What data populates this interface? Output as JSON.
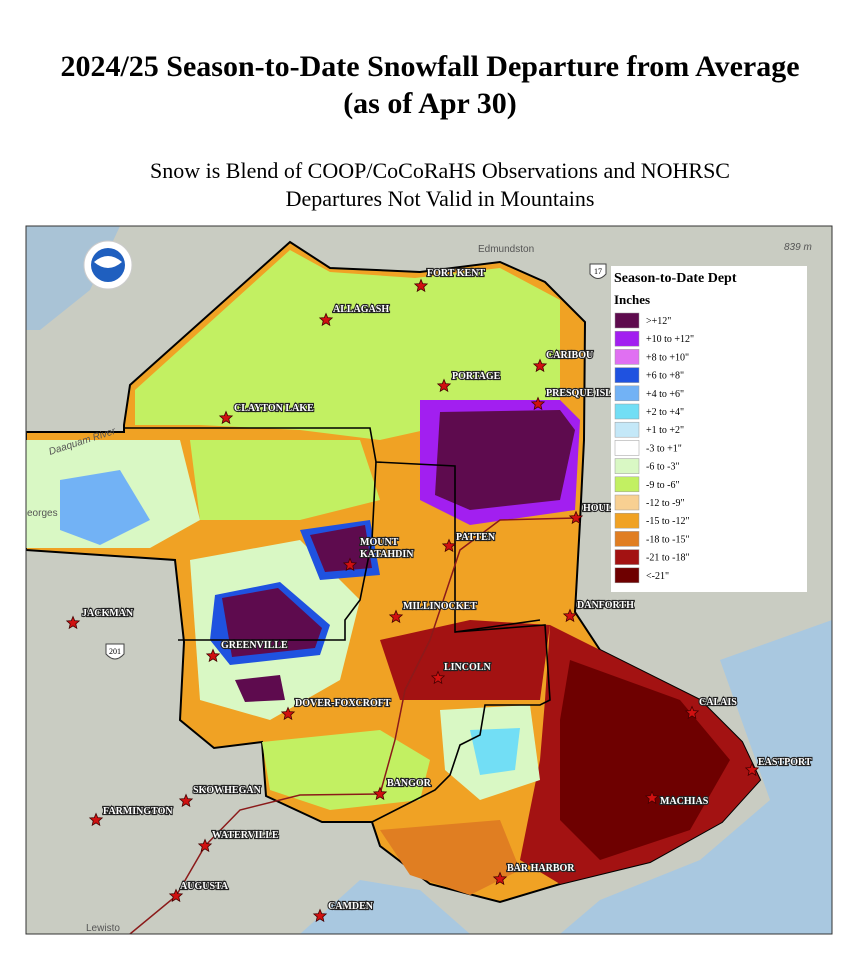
{
  "title": [
    "2024/25 Season-to-Date Snowfall Departure from Average",
    "(as of Apr 30)"
  ],
  "subtitle": [
    "Snow is Blend of COOP/CoCoRaHS Observations and NOHRSC",
    "Departures Not Valid in Mountains"
  ],
  "legend": {
    "title": "Season-to-Date Dept",
    "units": "Inches",
    "items": [
      {
        "label": ">+12\"",
        "color": "#5e0b4e"
      },
      {
        "label": "+10 to +12\"",
        "color": "#a21ff0"
      },
      {
        "label": "+8 to +10\"",
        "color": "#e070f2"
      },
      {
        "label": "+6 to +8\"",
        "color": "#1f52e0"
      },
      {
        "label": "+4 to +6\"",
        "color": "#72b2f5"
      },
      {
        "label": "+2 to +4\"",
        "color": "#72def5"
      },
      {
        "label": "+1 to +2\"",
        "color": "#c4e8f8"
      },
      {
        "label": "-3 to +1\"",
        "color": "#ffffff"
      },
      {
        "label": "-6 to -3\"",
        "color": "#d9f8c4"
      },
      {
        "label": "-9 to -6\"",
        "color": "#c2f062"
      },
      {
        "label": "-12 to -9\"",
        "color": "#f8d092"
      },
      {
        "label": "-15 to -12\"",
        "color": "#f0a224"
      },
      {
        "label": "-18 to -15\"",
        "color": "#e07e22"
      },
      {
        "label": "-21 to -18\"",
        "color": "#a31212"
      },
      {
        "label": "<-21\"",
        "color": "#6e0000"
      }
    ]
  },
  "cities": [
    {
      "name": [
        "FORT KENT"
      ]
    },
    {
      "name": [
        "ALLAGASH"
      ]
    },
    {
      "name": [
        "CARIBOU"
      ]
    },
    {
      "name": [
        "PORTAGE"
      ]
    },
    {
      "name": [
        "PRESQUE ISLE"
      ]
    },
    {
      "name": [
        "CLAYTON LAKE"
      ]
    },
    {
      "name": [
        "HOULTON"
      ]
    },
    {
      "name": [
        "MOUNT",
        "KATAHDIN"
      ]
    },
    {
      "name": [
        "PATTEN"
      ]
    },
    {
      "name": [
        "JACKMAN"
      ]
    },
    {
      "name": [
        "MILLINOCKET"
      ]
    },
    {
      "name": [
        "DANFORTH"
      ]
    },
    {
      "name": [
        "GREENVILLE"
      ]
    },
    {
      "name": [
        "LINCOLN"
      ]
    },
    {
      "name": [
        "CALAIS"
      ]
    },
    {
      "name": [
        "DOVER-FOXCROFT"
      ]
    },
    {
      "name": [
        "EASTPORT"
      ]
    },
    {
      "name": [
        "SKOWHEGAN"
      ]
    },
    {
      "name": [
        "BANGOR"
      ]
    },
    {
      "name": [
        "MACHIAS"
      ]
    },
    {
      "name": [
        "FARMINGTON"
      ]
    },
    {
      "name": [
        "WATERVILLE"
      ]
    },
    {
      "name": [
        "AUGUSTA"
      ]
    },
    {
      "name": [
        "BAR HARBOR"
      ]
    },
    {
      "name": [
        "CAMDEN"
      ]
    }
  ],
  "basemap_labels": [
    "Edmundston",
    "839 m",
    "Daaquam River",
    "eorges",
    "Lewisto"
  ],
  "route_shields": [
    "201",
    "17"
  ]
}
